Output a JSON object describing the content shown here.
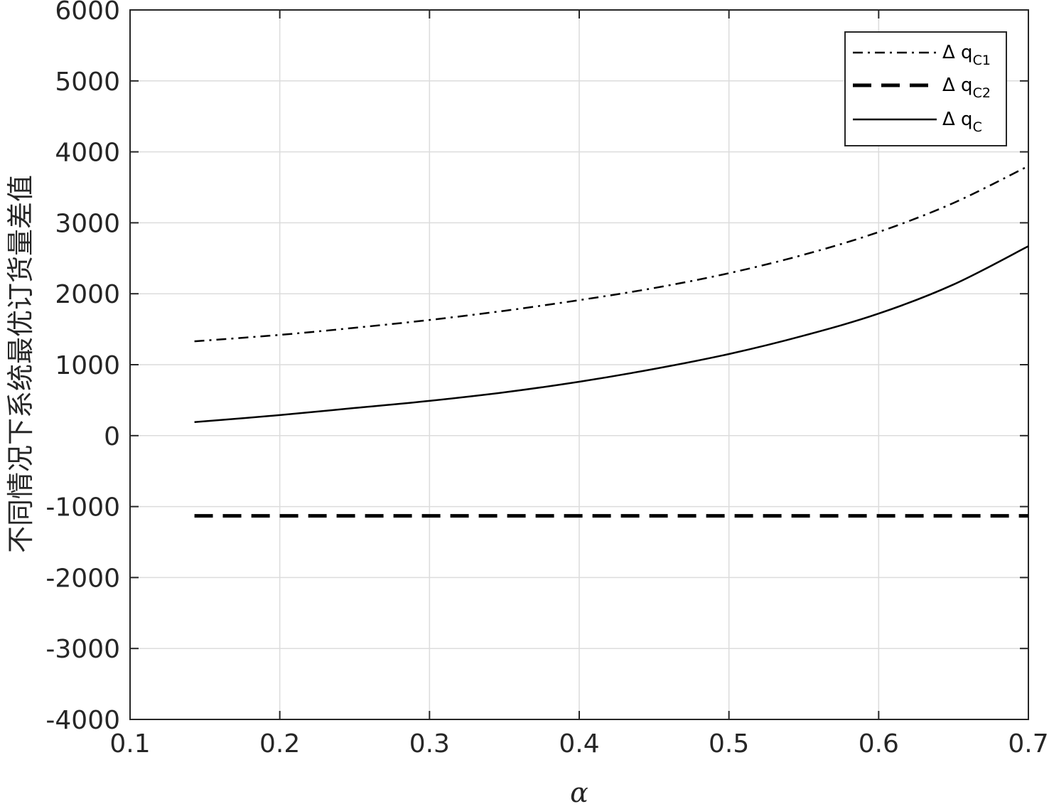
{
  "chart_data": {
    "type": "line",
    "title": "",
    "xlabel": "α",
    "ylabel": "不同情况下系统最优订货量差值",
    "xlim": [
      0.1,
      0.7
    ],
    "ylim": [
      -4000,
      6000
    ],
    "xticks": [
      "0.1",
      "0.2",
      "0.3",
      "0.4",
      "0.5",
      "0.6",
      "0.7"
    ],
    "yticks": [
      "-4000",
      "-3000",
      "-2000",
      "-1000",
      "0",
      "1000",
      "2000",
      "3000",
      "4000",
      "5000",
      "6000"
    ],
    "grid": true,
    "legend_position": "top-right",
    "x": [
      0.143,
      0.2,
      0.25,
      0.3,
      0.35,
      0.4,
      0.45,
      0.5,
      0.55,
      0.6,
      0.65,
      0.7
    ],
    "series": [
      {
        "name": "Δ q",
        "subscript": "C1",
        "style": "dashdot",
        "color": "#000000",
        "values": [
          1330,
          1420,
          1520,
          1630,
          1760,
          1910,
          2080,
          2290,
          2550,
          2870,
          3280,
          3800
        ]
      },
      {
        "name": "Δ q",
        "subscript": "C2",
        "style": "dashed",
        "color": "#000000",
        "values": [
          -1130,
          -1130,
          -1130,
          -1130,
          -1130,
          -1130,
          -1130,
          -1130,
          -1130,
          -1130,
          -1130,
          -1130
        ]
      },
      {
        "name": "Δ q",
        "subscript": "C",
        "style": "solid",
        "color": "#000000",
        "values": [
          190,
          290,
          390,
          490,
          610,
          760,
          940,
          1150,
          1410,
          1720,
          2130,
          2670
        ]
      }
    ]
  }
}
